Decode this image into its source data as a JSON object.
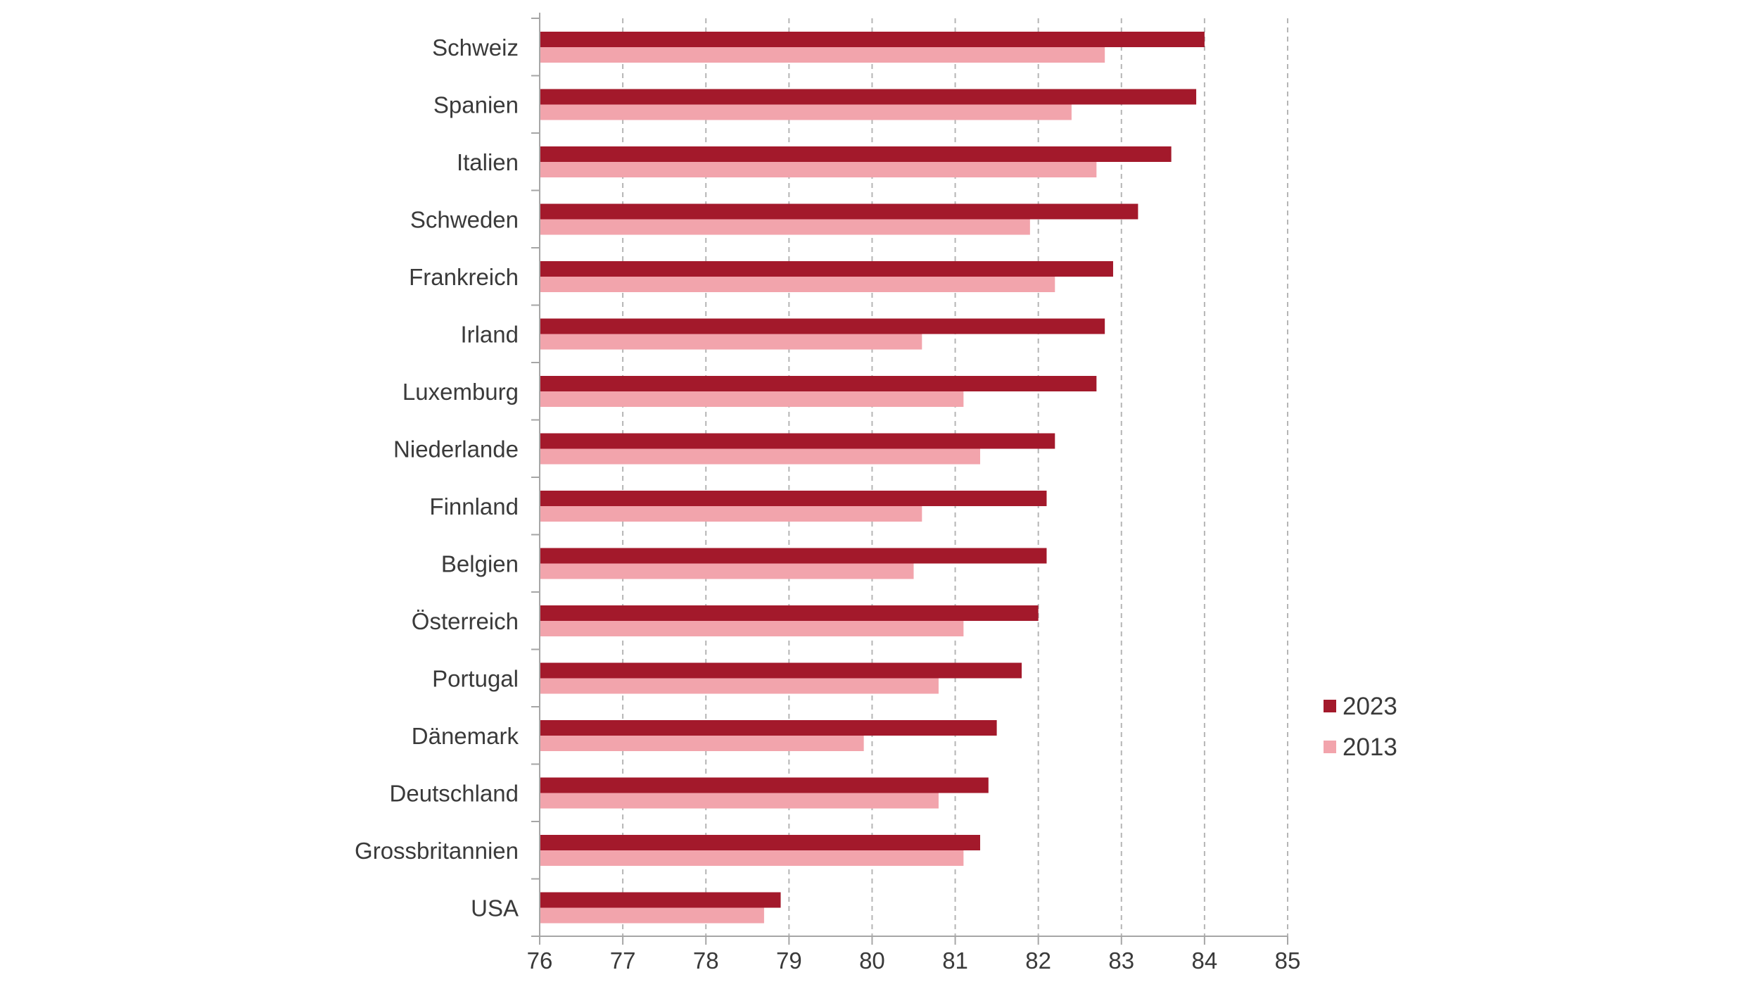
{
  "chart_data": {
    "type": "bar",
    "orientation": "horizontal",
    "title": "",
    "xlabel": "",
    "ylabel": "",
    "xlim": [
      76,
      85
    ],
    "xticks": [
      76,
      77,
      78,
      79,
      80,
      81,
      82,
      83,
      84,
      85
    ],
    "grid": "vertical dashed",
    "legend_position": "right",
    "categories": [
      "Schweiz",
      "Spanien",
      "Italien",
      "Schweden",
      "Frankreich",
      "Irland",
      "Luxemburg",
      "Niederlande",
      "Finnland",
      "Belgien",
      "Österreich",
      "Portugal",
      "Dänemark",
      "Deutschland",
      "Grossbritannien",
      "USA"
    ],
    "series": [
      {
        "name": "2023",
        "color": "#a3192b",
        "values": [
          84.0,
          83.9,
          83.6,
          83.2,
          82.9,
          82.8,
          82.7,
          82.2,
          82.1,
          82.1,
          82.0,
          81.8,
          81.5,
          81.4,
          81.3,
          78.9
        ]
      },
      {
        "name": "2013",
        "color": "#f2a4ac",
        "values": [
          82.8,
          82.4,
          82.7,
          81.9,
          82.2,
          80.6,
          81.1,
          81.3,
          80.6,
          80.5,
          81.1,
          80.8,
          79.9,
          80.8,
          81.1,
          78.7
        ]
      }
    ]
  }
}
